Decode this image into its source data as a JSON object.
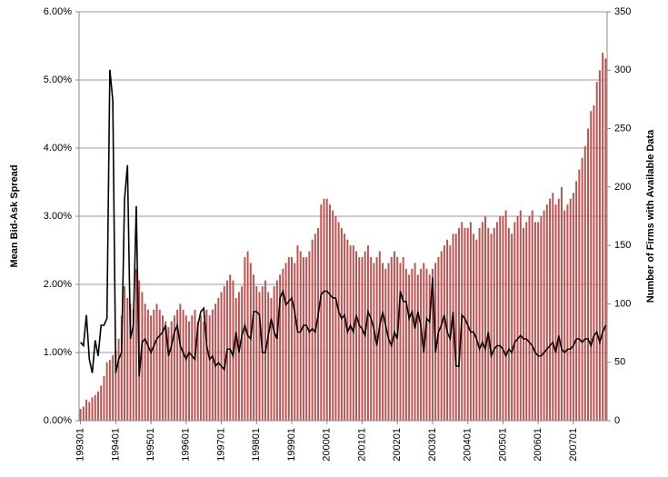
{
  "chart_data": {
    "type": "bar",
    "y_label": "Mean Bid-Ask Spread",
    "y2_label": "Number of Firms with Available Data",
    "categories": [
      "199301",
      null,
      null,
      null,
      null,
      null,
      null,
      null,
      null,
      null,
      null,
      null,
      "199401",
      null,
      null,
      null,
      null,
      null,
      null,
      null,
      null,
      null,
      null,
      null,
      "199501",
      null,
      null,
      null,
      null,
      null,
      null,
      null,
      null,
      null,
      null,
      null,
      "199601",
      null,
      null,
      null,
      null,
      null,
      null,
      null,
      null,
      null,
      null,
      null,
      "199701",
      null,
      null,
      null,
      null,
      null,
      null,
      null,
      null,
      null,
      null,
      null,
      "199801",
      null,
      null,
      null,
      null,
      null,
      null,
      null,
      null,
      null,
      null,
      null,
      "199901",
      null,
      null,
      null,
      null,
      null,
      null,
      null,
      null,
      null,
      null,
      null,
      "200001",
      null,
      null,
      null,
      null,
      null,
      null,
      null,
      null,
      null,
      null,
      null,
      "200101",
      null,
      null,
      null,
      null,
      null,
      null,
      null,
      null,
      null,
      null,
      null,
      "200201",
      null,
      null,
      null,
      null,
      null,
      null,
      null,
      null,
      null,
      null,
      null,
      "200301",
      null,
      null,
      null,
      null,
      null,
      null,
      null,
      null,
      null,
      null,
      null,
      "200401",
      null,
      null,
      null,
      null,
      null,
      null,
      null,
      null,
      null,
      null,
      null,
      "200501",
      null,
      null,
      null,
      null,
      null,
      null,
      null,
      null,
      null,
      null,
      null,
      "200601",
      null,
      null,
      null,
      null,
      null,
      null,
      null,
      null,
      null,
      null,
      null,
      "200701",
      null,
      null,
      null,
      null,
      null,
      null,
      null,
      null,
      null,
      null,
      null
    ],
    "series": [
      {
        "type": "bar",
        "axis": "y2",
        "color": "#c0504d",
        "values": [
          10,
          12,
          18,
          16,
          20,
          22,
          25,
          30,
          38,
          50,
          52,
          56,
          60,
          70,
          90,
          115,
          105,
          100,
          95,
          130,
          120,
          110,
          100,
          95,
          90,
          95,
          100,
          95,
          90,
          85,
          80,
          85,
          90,
          95,
          100,
          95,
          90,
          85,
          90,
          95,
          85,
          90,
          85,
          95,
          90,
          95,
          100,
          105,
          110,
          115,
          120,
          125,
          120,
          105,
          110,
          115,
          140,
          145,
          135,
          125,
          115,
          110,
          115,
          120,
          110,
          105,
          115,
          120,
          125,
          130,
          135,
          140,
          140,
          135,
          150,
          145,
          140,
          140,
          145,
          155,
          160,
          165,
          185,
          190,
          190,
          185,
          180,
          175,
          170,
          165,
          160,
          155,
          150,
          150,
          145,
          140,
          140,
          145,
          150,
          140,
          135,
          140,
          145,
          135,
          130,
          135,
          140,
          145,
          140,
          135,
          140,
          130,
          125,
          130,
          135,
          125,
          130,
          135,
          130,
          125,
          130,
          135,
          140,
          145,
          150,
          155,
          150,
          160,
          160,
          165,
          170,
          165,
          165,
          170,
          160,
          155,
          165,
          170,
          175,
          165,
          160,
          165,
          170,
          175,
          175,
          180,
          165,
          160,
          170,
          175,
          180,
          165,
          170,
          175,
          180,
          170,
          170,
          175,
          180,
          185,
          190,
          195,
          185,
          190,
          200,
          180,
          185,
          190,
          195,
          205,
          215,
          225,
          235,
          250,
          265,
          270,
          290,
          300,
          315,
          310
        ]
      },
      {
        "type": "line",
        "axis": "y",
        "color": "#000000",
        "values": [
          1.15,
          1.1,
          1.55,
          0.9,
          0.7,
          1.18,
          0.95,
          1.4,
          1.4,
          1.5,
          5.15,
          4.7,
          0.7,
          0.9,
          1.0,
          3.25,
          3.75,
          1.2,
          1.4,
          3.15,
          0.65,
          1.15,
          1.2,
          1.1,
          1.0,
          1.1,
          1.2,
          1.25,
          1.3,
          1.4,
          0.95,
          1.1,
          1.3,
          1.4,
          1.1,
          1.0,
          0.9,
          1.0,
          0.95,
          0.9,
          1.4,
          1.6,
          1.65,
          1.1,
          0.9,
          0.95,
          0.8,
          0.85,
          0.8,
          0.75,
          1.05,
          1.05,
          0.95,
          1.3,
          1.0,
          1.25,
          1.4,
          1.25,
          1.2,
          1.6,
          1.6,
          1.55,
          1.0,
          1.0,
          1.25,
          1.5,
          1.3,
          1.2,
          1.8,
          1.9,
          1.7,
          1.75,
          1.8,
          1.6,
          1.3,
          1.3,
          1.4,
          1.4,
          1.3,
          1.35,
          1.3,
          1.55,
          1.85,
          1.9,
          1.9,
          1.85,
          1.8,
          1.8,
          1.6,
          1.5,
          1.55,
          1.3,
          1.4,
          1.3,
          1.55,
          1.4,
          1.35,
          1.25,
          1.6,
          1.5,
          1.35,
          1.1,
          1.4,
          1.6,
          1.4,
          1.2,
          1.1,
          1.3,
          1.2,
          1.9,
          1.75,
          1.75,
          1.5,
          1.6,
          1.35,
          1.6,
          1.4,
          1.0,
          1.5,
          1.45,
          2.1,
          1.0,
          1.3,
          1.4,
          1.55,
          1.3,
          1.2,
          1.6,
          0.8,
          0.8,
          1.55,
          1.5,
          1.4,
          1.3,
          1.3,
          1.2,
          1.05,
          1.15,
          1.05,
          1.3,
          0.95,
          1.05,
          1.1,
          1.1,
          1.05,
          0.95,
          1.05,
          1.0,
          1.15,
          1.2,
          1.25,
          1.2,
          1.2,
          1.15,
          1.1,
          1.0,
          0.95,
          0.95,
          1.0,
          1.05,
          1.1,
          1.15,
          1.0,
          1.25,
          1.05,
          1.0,
          1.05,
          1.05,
          1.1,
          1.2,
          1.2,
          1.15,
          1.2,
          1.2,
          1.1,
          1.25,
          1.3,
          1.15,
          1.3,
          1.4
        ]
      }
    ],
    "ylim": [
      0,
      6
    ],
    "yticks": [
      {
        "value": 0,
        "label": "0.00%"
      },
      {
        "value": 1,
        "label": "1.00%"
      },
      {
        "value": 2,
        "label": "2.00%"
      },
      {
        "value": 3,
        "label": "3.00%"
      },
      {
        "value": 4,
        "label": "4.00%"
      },
      {
        "value": 5,
        "label": "5.00%"
      },
      {
        "value": 6,
        "label": "6.00%"
      }
    ],
    "y2lim": [
      0,
      350
    ],
    "y2ticks": [
      0,
      50,
      100,
      150,
      200,
      250,
      300,
      350
    ],
    "grid": true
  }
}
